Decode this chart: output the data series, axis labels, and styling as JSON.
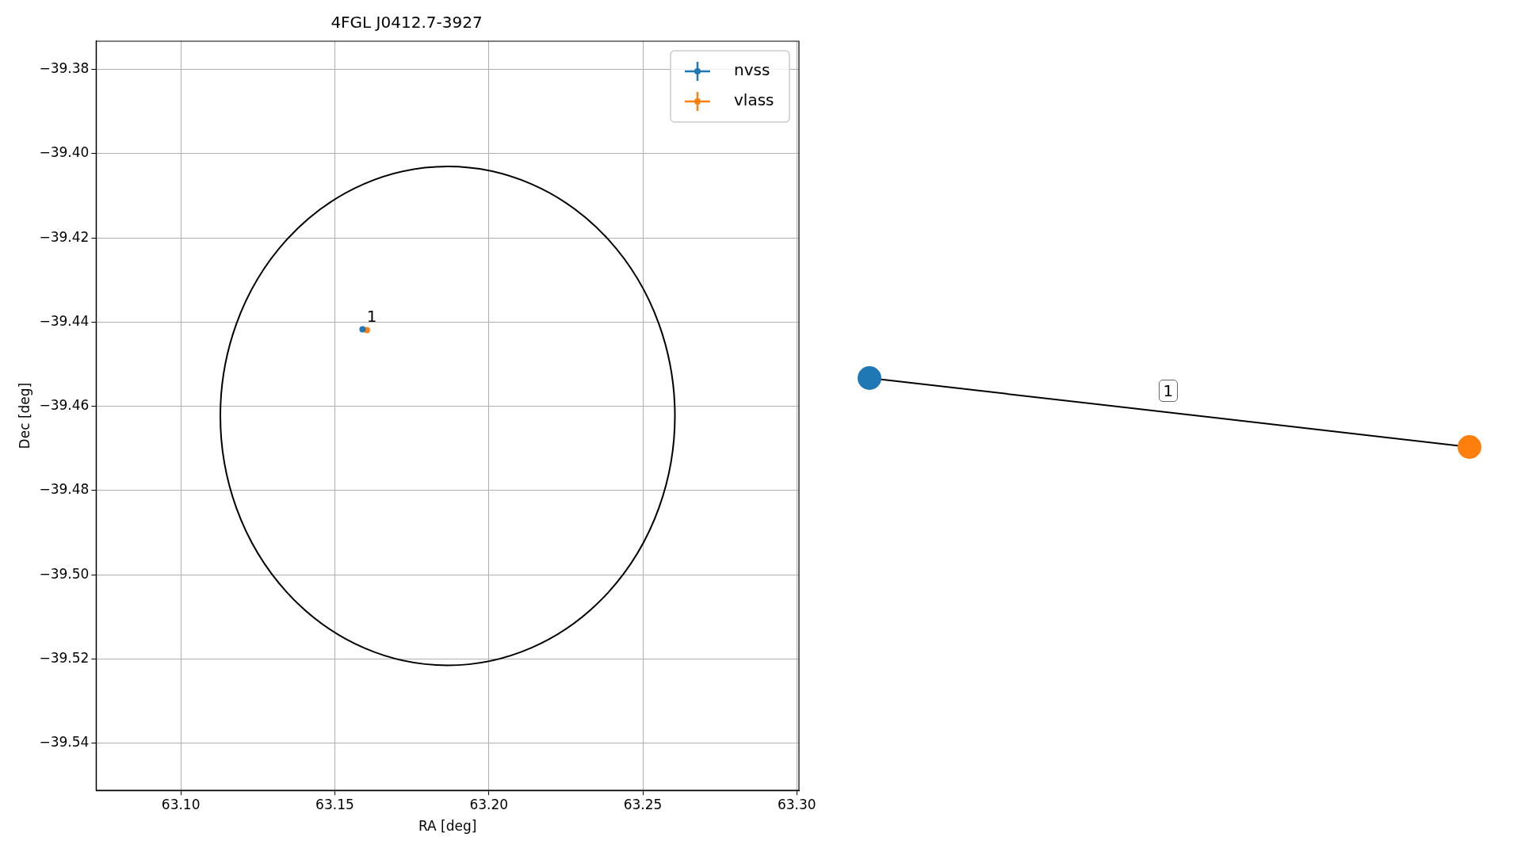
{
  "chart_data": [
    {
      "type": "scatter",
      "title": "4FGL J0412.7-3927",
      "xlabel": "RA [deg]",
      "ylabel": "Dec [deg]",
      "xlim": [
        63.0725,
        63.3007
      ],
      "ylim": [
        -39.5512,
        -39.3733
      ],
      "xticks": [
        {
          "value": 63.1,
          "label": "63.10"
        },
        {
          "value": 63.15,
          "label": "63.15"
        },
        {
          "value": 63.2,
          "label": "63.20"
        },
        {
          "value": 63.25,
          "label": "63.25"
        },
        {
          "value": 63.3,
          "label": "63.30"
        }
      ],
      "yticks": [
        {
          "value": -39.54,
          "label": "−39.54"
        },
        {
          "value": -39.52,
          "label": "−39.52"
        },
        {
          "value": -39.5,
          "label": "−39.50"
        },
        {
          "value": -39.48,
          "label": "−39.48"
        },
        {
          "value": -39.46,
          "label": "−39.46"
        },
        {
          "value": -39.44,
          "label": "−39.44"
        },
        {
          "value": -39.42,
          "label": "−39.42"
        },
        {
          "value": -39.4,
          "label": "−39.40"
        },
        {
          "value": -39.38,
          "label": "−39.38"
        }
      ],
      "grid": true,
      "legend": "top right",
      "marker": "circle",
      "series": [
        {
          "name": "nvss",
          "color": "#1f77b4",
          "x": [
            63.159
          ],
          "values": [
            -39.4417
          ]
        },
        {
          "name": "vlass",
          "color": "#ff7f0e",
          "x": [
            63.1604
          ],
          "values": [
            -39.4419
          ]
        }
      ],
      "annotations": [
        {
          "text": "1",
          "x": 63.1604,
          "y": -39.4419
        }
      ]
    },
    {
      "type": "other",
      "annotations": [
        "1"
      ]
    }
  ]
}
